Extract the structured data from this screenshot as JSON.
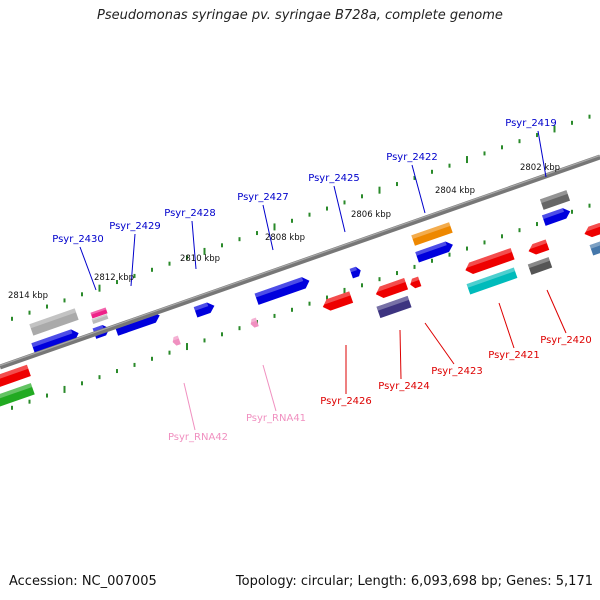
{
  "title": "Pseudomonas syringae pv. syringae B728a, complete genome",
  "footer": {
    "accession": "Accession: NC_007005",
    "topology": "Topology: circular; Length: 6,093,698 bp; Genes: 5,171"
  },
  "colors": {
    "backbone": "#777777",
    "tick": "#2a8a2a",
    "label_forward": "#0000cc",
    "label_reverse": "#dd0000",
    "label_rna": "#f090c0"
  },
  "scale_labels": [
    "2802 kbp",
    "2804 kbp",
    "2806 kbp",
    "2808 kbp",
    "2810 kbp",
    "2812 kbp",
    "2814 kbp"
  ],
  "genes_forward": [
    {
      "label": "Psyr_2419",
      "color": "#0000cc"
    },
    {
      "label": "Psyr_2422",
      "color": "#0000cc"
    },
    {
      "label": "Psyr_2425",
      "color": "#0000cc"
    },
    {
      "label": "Psyr_2427",
      "color": "#0000cc"
    },
    {
      "label": "Psyr_2428",
      "color": "#0000cc"
    },
    {
      "label": "Psyr_2429",
      "color": "#0000cc"
    },
    {
      "label": "Psyr_2430",
      "color": "#0000cc"
    }
  ],
  "genes_reverse": [
    {
      "label": "Psyr_2420",
      "color": "#dd0000"
    },
    {
      "label": "Psyr_2421",
      "color": "#dd0000"
    },
    {
      "label": "Psyr_2423",
      "color": "#dd0000"
    },
    {
      "label": "Psyr_2424",
      "color": "#dd0000"
    },
    {
      "label": "Psyr_2426",
      "color": "#dd0000"
    }
  ],
  "rnas": [
    {
      "label": "Psyr_RNA41",
      "color": "#f090c0"
    },
    {
      "label": "Psyr_RNA42",
      "color": "#f090c0"
    }
  ]
}
